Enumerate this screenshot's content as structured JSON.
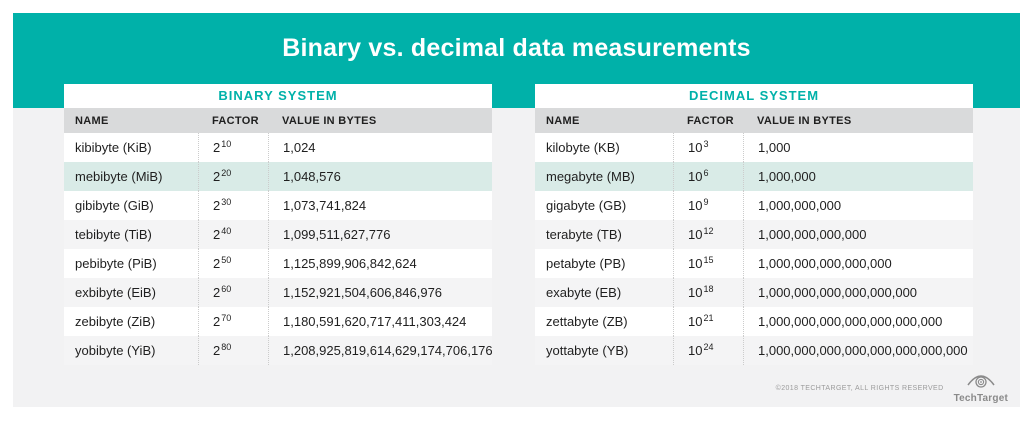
{
  "header": {
    "title": "Binary vs. decimal data measurements"
  },
  "colors": {
    "teal_accent": "#00b1a9",
    "highlight_row_mint": "#d9ebe7",
    "column_header_gray": "#d9dadb",
    "alt_row_gray": "#f4f4f5",
    "card_background": "#f2f2f3",
    "text_dark": "#1f1f1f",
    "footer_gray": "#9b9b9b"
  },
  "chart_data": [
    {
      "type": "table",
      "title": "BINARY SYSTEM",
      "columns": [
        "NAME",
        "FACTOR",
        "VALUE IN BYTES"
      ],
      "rows": [
        {
          "name": "kibibyte (KiB)",
          "factor_base": "2",
          "factor_exp": "10",
          "value": "1,024",
          "highlight": false
        },
        {
          "name": "mebibyte (MiB)",
          "factor_base": "2",
          "factor_exp": "20",
          "value": "1,048,576",
          "highlight": true
        },
        {
          "name": "gibibyte (GiB)",
          "factor_base": "2",
          "factor_exp": "30",
          "value": "1,073,741,824",
          "highlight": false
        },
        {
          "name": "tebibyte (TiB)",
          "factor_base": "2",
          "factor_exp": "40",
          "value": "1,099,511,627,776",
          "highlight": false
        },
        {
          "name": "pebibyte (PiB)",
          "factor_base": "2",
          "factor_exp": "50",
          "value": "1,125,899,906,842,624",
          "highlight": false
        },
        {
          "name": "exbibyte (EiB)",
          "factor_base": "2",
          "factor_exp": "60",
          "value": "1,152,921,504,606,846,976",
          "highlight": false
        },
        {
          "name": "zebibyte (ZiB)",
          "factor_base": "2",
          "factor_exp": "70",
          "value": "1,180,591,620,717,411,303,424",
          "highlight": false
        },
        {
          "name": "yobibyte (YiB)",
          "factor_base": "2",
          "factor_exp": "80",
          "value": "1,208,925,819,614,629,174,706,176",
          "highlight": false
        }
      ]
    },
    {
      "type": "table",
      "title": "DECIMAL SYSTEM",
      "columns": [
        "NAME",
        "FACTOR",
        "VALUE IN BYTES"
      ],
      "rows": [
        {
          "name": "kilobyte (KB)",
          "factor_base": "10",
          "factor_exp": "3",
          "value": "1,000",
          "highlight": false
        },
        {
          "name": "megabyte (MB)",
          "factor_base": "10",
          "factor_exp": "6",
          "value": "1,000,000",
          "highlight": true
        },
        {
          "name": "gigabyte (GB)",
          "factor_base": "10",
          "factor_exp": "9",
          "value": "1,000,000,000",
          "highlight": false
        },
        {
          "name": "terabyte (TB)",
          "factor_base": "10",
          "factor_exp": "12",
          "value": "1,000,000,000,000",
          "highlight": false
        },
        {
          "name": "petabyte (PB)",
          "factor_base": "10",
          "factor_exp": "15",
          "value": "1,000,000,000,000,000",
          "highlight": false
        },
        {
          "name": "exabyte (EB)",
          "factor_base": "10",
          "factor_exp": "18",
          "value": "1,000,000,000,000,000,000",
          "highlight": false
        },
        {
          "name": "zettabyte (ZB)",
          "factor_base": "10",
          "factor_exp": "21",
          "value": "1,000,000,000,000,000,000,000",
          "highlight": false
        },
        {
          "name": "yottabyte (YB)",
          "factor_base": "10",
          "factor_exp": "24",
          "value": "1,000,000,000,000,000,000,000,000",
          "highlight": false
        }
      ]
    }
  ],
  "footer": {
    "copyright": "©2018 TECHTARGET, ALL RIGHTS RESERVED",
    "logo_text": "TechTarget",
    "logo_icon": "eye-target-icon"
  }
}
